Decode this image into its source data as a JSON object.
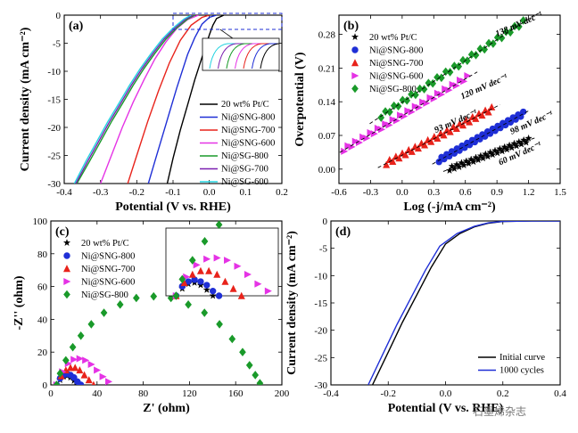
{
  "watermark": "石墨烯杂志",
  "chart_data": [
    {
      "panel": "(a)",
      "type": "line",
      "xlabel": "Potential (V vs. RHE)",
      "ylabel": "Current density (mA cm⁻²)",
      "xlim": [
        -0.4,
        0.2
      ],
      "ylim": [
        -30,
        0
      ],
      "xticks": [
        "-0.4",
        "-0.3",
        "-0.2",
        "-0.1",
        "0.0",
        "0.1",
        "0.2"
      ],
      "yticks": [
        "0",
        "-5",
        "-10",
        "-15",
        "-20",
        "-25",
        "-30"
      ],
      "legend_position": "bottom-right",
      "series": [
        {
          "name": "20 wt% Pt/C",
          "color": "#000000",
          "x": [
            -0.116,
            -0.1,
            -0.08,
            -0.06,
            -0.04,
            -0.02,
            0.0,
            0.01,
            0.02,
            0.04
          ],
          "y": [
            -30,
            -25.5,
            -20.5,
            -16,
            -11.5,
            -7.5,
            -3.5,
            -1.8,
            -0.6,
            0
          ]
        },
        {
          "name": "Ni@SNG-800",
          "color": "#1f2fd6",
          "x": [
            -0.168,
            -0.15,
            -0.12,
            -0.09,
            -0.06,
            -0.04,
            -0.02,
            0.0,
            0.02
          ],
          "y": [
            -30,
            -26,
            -19.5,
            -13,
            -7,
            -4,
            -1.6,
            -0.4,
            0
          ]
        },
        {
          "name": "Ni@SNG-700",
          "color": "#e8231b",
          "x": [
            -0.225,
            -0.2,
            -0.17,
            -0.14,
            -0.11,
            -0.08,
            -0.05,
            -0.02,
            0.0
          ],
          "y": [
            -30,
            -25,
            -19,
            -13.5,
            -8.5,
            -4.5,
            -1.8,
            -0.4,
            0
          ]
        },
        {
          "name": "Ni@SNG-600",
          "color": "#e533e5",
          "x": [
            -0.3,
            -0.27,
            -0.24,
            -0.21,
            -0.18,
            -0.15,
            -0.12,
            -0.09,
            -0.06,
            -0.03
          ],
          "y": [
            -30,
            -25,
            -20,
            -15.5,
            -11.5,
            -7.8,
            -4.8,
            -2.4,
            -0.8,
            0
          ]
        },
        {
          "name": "Ni@SG-800",
          "color": "#1a9a2a",
          "x": [
            -0.365,
            -0.33,
            -0.3,
            -0.27,
            -0.24,
            -0.21,
            -0.18,
            -0.15,
            -0.12,
            -0.09,
            -0.06,
            -0.04
          ],
          "y": [
            -30,
            -26,
            -22.5,
            -19,
            -15.8,
            -12.5,
            -9.5,
            -6.8,
            -4.3,
            -2.3,
            -0.7,
            0
          ]
        },
        {
          "name": "Ni@SG-700",
          "color": "#7a1fb0",
          "x": [
            -0.368,
            -0.335,
            -0.305,
            -0.275,
            -0.245,
            -0.215,
            -0.185,
            -0.155,
            -0.125,
            -0.095,
            -0.065,
            -0.045
          ],
          "y": [
            -30,
            -26,
            -22.5,
            -19,
            -15.8,
            -12.5,
            -9.5,
            -6.8,
            -4.3,
            -2.3,
            -0.7,
            0
          ]
        },
        {
          "name": "Ni@SG-600",
          "color": "#22d3e0",
          "x": [
            -0.372,
            -0.34,
            -0.31,
            -0.28,
            -0.25,
            -0.22,
            -0.19,
            -0.16,
            -0.13,
            -0.1,
            -0.07,
            -0.05
          ],
          "y": [
            -30,
            -26,
            -22.5,
            -19,
            -15.8,
            -12.5,
            -9.5,
            -6.8,
            -4.3,
            -2.3,
            -0.7,
            0
          ]
        }
      ]
    },
    {
      "panel": "(b)",
      "type": "scatter",
      "xlabel": "Log (-j/mA cm⁻²)",
      "ylabel": "Overpotential (V)",
      "xlim": [
        -0.6,
        1.5
      ],
      "ylim": [
        -0.03,
        0.32
      ],
      "xticks": [
        "-0.6",
        "-0.3",
        "0.0",
        "0.3",
        "0.6",
        "0.9",
        "1.2",
        "1.5"
      ],
      "yticks": [
        "0.00",
        "0.07",
        "0.14",
        "0.21",
        "0.28"
      ],
      "legend_position": "top-left",
      "annotations": [
        "138 mV dec⁻¹",
        "120 mV dec⁻¹",
        "93 mV dec⁻¹",
        "98 mV dec⁻¹",
        "60 mV dec⁻¹"
      ],
      "series": [
        {
          "name": "20 wt% Pt/C",
          "color": "#000000",
          "marker": "star",
          "x": [
            0.45,
            1.2
          ],
          "y": [
            0.0,
            0.06
          ]
        },
        {
          "name": "Ni@SNG-800",
          "color": "#1f2fd6",
          "marker": "circle",
          "x": [
            0.35,
            1.15
          ],
          "y": [
            0.018,
            0.115
          ]
        },
        {
          "name": "Ni@SNG-700",
          "color": "#e8231b",
          "marker": "triangle",
          "x": [
            -0.15,
            0.85
          ],
          "y": [
            0.012,
            0.125
          ]
        },
        {
          "name": "Ni@SNG-600",
          "color": "#e533e5",
          "marker": "triangle-right",
          "x": [
            -0.55,
            0.62
          ],
          "y": [
            0.04,
            0.19
          ]
        },
        {
          "name": "Ni@SG-800",
          "color": "#1a9a2a",
          "marker": "diamond",
          "x": [
            -0.2,
            1.15
          ],
          "y": [
            0.11,
            0.305
          ]
        }
      ]
    },
    {
      "panel": "(c)",
      "type": "scatter",
      "xlabel": "Z' (ohm)",
      "ylabel": "-Z'' (ohm)",
      "xlim": [
        0,
        200
      ],
      "ylim": [
        0,
        100
      ],
      "xticks": [
        "0",
        "40",
        "80",
        "120",
        "160",
        "200"
      ],
      "yticks": [
        "0",
        "20",
        "40",
        "60",
        "80",
        "100"
      ],
      "legend_position": "top-left",
      "series": [
        {
          "name": "20 wt% Pt/C",
          "color": "#000000",
          "marker": "star",
          "x": [
            5,
            8,
            11,
            14,
            17,
            20,
            23
          ],
          "y": [
            0,
            3,
            5,
            5.5,
            4.5,
            2.5,
            0
          ]
        },
        {
          "name": "Ni@SNG-800",
          "color": "#1f2fd6",
          "marker": "circle",
          "x": [
            5,
            8,
            11,
            14,
            17,
            20,
            23,
            26
          ],
          "y": [
            0,
            4,
            6,
            6.8,
            6,
            4.5,
            2,
            0
          ]
        },
        {
          "name": "Ni@SNG-700",
          "color": "#e8231b",
          "marker": "triangle",
          "x": [
            5,
            9,
            13,
            17,
            21,
            25,
            29,
            33,
            37
          ],
          "y": [
            0,
            5.5,
            9,
            10.5,
            10.5,
            9,
            6,
            3,
            0
          ]
        },
        {
          "name": "Ni@SNG-600",
          "color": "#e533e5",
          "marker": "triangle-right",
          "x": [
            5,
            10,
            15,
            20,
            25,
            30,
            35,
            40,
            45,
            50
          ],
          "y": [
            0,
            8,
            13,
            15.5,
            16,
            15,
            12.5,
            9,
            5,
            2
          ]
        },
        {
          "name": "Ni@SG-800",
          "color": "#1a9a2a",
          "marker": "diamond",
          "x": [
            5,
            8,
            13,
            19,
            26,
            35,
            46,
            60,
            74,
            89,
            104,
            119,
            133,
            146,
            157,
            166,
            172,
            177,
            181
          ],
          "y": [
            0,
            7,
            15,
            23,
            30,
            37,
            44,
            49,
            53,
            54,
            53,
            49,
            44,
            37,
            28,
            20,
            12,
            6,
            1
          ]
        }
      ]
    },
    {
      "panel": "(d)",
      "type": "line",
      "xlabel": "Potential (V vs. RHE)",
      "ylabel": "Current density (mA cm⁻²)",
      "xlim": [
        -0.4,
        0.4
      ],
      "ylim": [
        -30,
        0
      ],
      "xticks": [
        "-0.4",
        "-0.2",
        "0.0",
        "0.2",
        "0.4"
      ],
      "yticks": [
        "0",
        "-5",
        "-10",
        "-15",
        "-20",
        "-25",
        "-30"
      ],
      "legend_position": "bottom-right",
      "series": [
        {
          "name": "Initial curve",
          "color": "#000000",
          "x": [
            -0.255,
            -0.2,
            -0.15,
            -0.1,
            -0.05,
            0.0,
            0.05,
            0.1,
            0.15,
            0.2,
            0.3,
            0.4
          ],
          "y": [
            -30,
            -24,
            -18.5,
            -13.5,
            -8.5,
            -4.2,
            -2.3,
            -1.1,
            -0.4,
            -0.1,
            0,
            0
          ]
        },
        {
          "name": "1000 cycles",
          "color": "#1f2fd6",
          "x": [
            -0.27,
            -0.22,
            -0.17,
            -0.12,
            -0.07,
            -0.02,
            0.04,
            0.1,
            0.15,
            0.2,
            0.3,
            0.4
          ],
          "y": [
            -30,
            -24.5,
            -19,
            -14,
            -9,
            -4.6,
            -2.3,
            -1.0,
            -0.35,
            -0.08,
            0,
            0
          ]
        }
      ]
    }
  ]
}
